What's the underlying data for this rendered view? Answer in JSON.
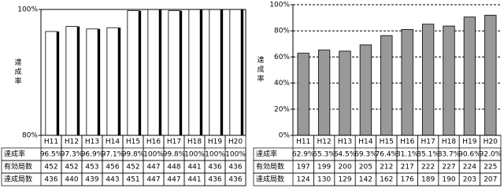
{
  "chart_data": [
    {
      "type": "bar",
      "ylabel": "達成率",
      "categories": [
        "H11",
        "H12",
        "H13",
        "H14",
        "H15",
        "H16",
        "H17",
        "H18",
        "H19",
        "H20"
      ],
      "values": [
        96.5,
        97.3,
        96.9,
        97.1,
        99.8,
        100,
        99.8,
        100,
        100,
        100
      ],
      "value_labels": [
        "96.5%",
        "97.3%",
        "96.9%",
        "97.1%",
        "99.8%",
        "100%",
        "99.8%",
        "100%",
        "100%",
        "100%"
      ],
      "color": "#ffffff",
      "shadow": true,
      "frame": true,
      "grid": false,
      "ylim": [
        80,
        100
      ],
      "yticks": [
        {
          "value": 80,
          "label": "80%"
        },
        {
          "value": 100,
          "label": "100%"
        }
      ],
      "table_rows": [
        {
          "label": "達成率"
        },
        {
          "label": "有効局数",
          "values": [
            452,
            452,
            453,
            456,
            452,
            447,
            448,
            441,
            436,
            436
          ]
        },
        {
          "label": "達成局数",
          "values": [
            436,
            440,
            439,
            443,
            451,
            447,
            447,
            441,
            436,
            436
          ]
        }
      ]
    },
    {
      "type": "bar",
      "ylabel": "達成率",
      "categories": [
        "H11",
        "H12",
        "H13",
        "H14",
        "H15",
        "H16",
        "H17",
        "H18",
        "H19",
        "H20"
      ],
      "values": [
        62.9,
        65.3,
        64.5,
        69.3,
        76.4,
        81.1,
        85.1,
        83.7,
        90.6,
        92.0
      ],
      "value_labels": [
        "62.9%",
        "65.3%",
        "64.5%",
        "69.3%",
        "76.4%",
        "81.1%",
        "85.1%",
        "83.7%",
        "90.6%",
        "92.0%"
      ],
      "color": "#999999",
      "shadow": false,
      "frame": false,
      "grid": true,
      "ylim": [
        0,
        100
      ],
      "yticks": [
        {
          "value": 0,
          "label": "0%"
        },
        {
          "value": 20,
          "label": "20%"
        },
        {
          "value": 40,
          "label": "40%"
        },
        {
          "value": 60,
          "label": "60%"
        },
        {
          "value": 80,
          "label": "80%"
        },
        {
          "value": 100,
          "label": "100%"
        }
      ],
      "table_rows": [
        {
          "label": "達成率"
        },
        {
          "label": "有効局数",
          "values": [
            197,
            199,
            200,
            205,
            212,
            217,
            222,
            227,
            224,
            225
          ]
        },
        {
          "label": "達成局数",
          "values": [
            124,
            130,
            129,
            142,
            162,
            176,
            189,
            190,
            203,
            207
          ]
        }
      ]
    }
  ]
}
